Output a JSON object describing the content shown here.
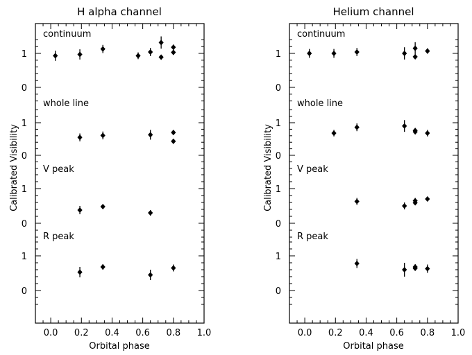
{
  "chart_data": [
    {
      "type": "scatter",
      "title": "H alpha channel",
      "xlabel": "Orbital phase",
      "ylabel": "Calibrated Visibility",
      "xlim": [
        -0.1,
        1.0
      ],
      "xticks": [
        "0.0",
        "0.2",
        "0.4",
        "0.6",
        "0.8",
        "1.0"
      ],
      "panels": [
        {
          "name": "continuum",
          "yticks": [
            "0",
            "1"
          ],
          "points": [
            {
              "x": 0.03,
              "y": 0.93,
              "err": 0.15
            },
            {
              "x": 0.19,
              "y": 0.97,
              "err": 0.15
            },
            {
              "x": 0.34,
              "y": 1.13,
              "err": 0.12
            },
            {
              "x": 0.57,
              "y": 0.93,
              "err": 0.1
            },
            {
              "x": 0.65,
              "y": 1.04,
              "err": 0.12
            },
            {
              "x": 0.72,
              "y": 1.32,
              "err": 0.18
            },
            {
              "x": 0.72,
              "y": 0.89,
              "err": 0.02
            },
            {
              "x": 0.8,
              "y": 1.18,
              "err": 0.08
            },
            {
              "x": 0.8,
              "y": 1.03,
              "err": 0.07
            }
          ]
        },
        {
          "name": "whole line",
          "yticks": [
            "0",
            "1"
          ],
          "points": [
            {
              "x": 0.19,
              "y": 0.55,
              "err": 0.12
            },
            {
              "x": 0.34,
              "y": 0.61,
              "err": 0.12
            },
            {
              "x": 0.65,
              "y": 0.63,
              "err": 0.15
            },
            {
              "x": 0.8,
              "y": 0.7,
              "err": 0.04
            },
            {
              "x": 0.8,
              "y": 0.43,
              "err": 0.03
            }
          ]
        },
        {
          "name": "V peak",
          "yticks": [
            "0",
            "1"
          ],
          "points": [
            {
              "x": 0.19,
              "y": 0.38,
              "err": 0.12
            },
            {
              "x": 0.34,
              "y": 0.48,
              "err": 0.04
            },
            {
              "x": 0.65,
              "y": 0.3,
              "err": 0.08
            }
          ]
        },
        {
          "name": "R peak",
          "yticks": [
            "0",
            "1"
          ],
          "points": [
            {
              "x": 0.19,
              "y": 0.53,
              "err": 0.15
            },
            {
              "x": 0.34,
              "y": 0.68,
              "err": 0.08
            },
            {
              "x": 0.65,
              "y": 0.45,
              "err": 0.15
            },
            {
              "x": 0.8,
              "y": 0.65,
              "err": 0.1
            }
          ]
        }
      ]
    },
    {
      "type": "scatter",
      "title": "Helium channel",
      "xlabel": "Orbital phase",
      "ylabel": "Calibrated Visibility",
      "xlim": [
        -0.1,
        1.0
      ],
      "xticks": [
        "0.0",
        "0.2",
        "0.4",
        "0.6",
        "0.8",
        "1.0"
      ],
      "panels": [
        {
          "name": "continuum",
          "yticks": [
            "0",
            "1"
          ],
          "points": [
            {
              "x": 0.03,
              "y": 1.0,
              "err": 0.13
            },
            {
              "x": 0.19,
              "y": 1.0,
              "err": 0.13
            },
            {
              "x": 0.34,
              "y": 1.04,
              "err": 0.12
            },
            {
              "x": 0.65,
              "y": 1.0,
              "err": 0.18
            },
            {
              "x": 0.72,
              "y": 1.15,
              "err": 0.18
            },
            {
              "x": 0.72,
              "y": 0.9,
              "err": 0.05
            },
            {
              "x": 0.8,
              "y": 1.07,
              "err": 0.08
            }
          ]
        },
        {
          "name": "whole line",
          "yticks": [
            "0",
            "1"
          ],
          "points": [
            {
              "x": 0.19,
              "y": 0.68,
              "err": 0.1
            },
            {
              "x": 0.34,
              "y": 0.86,
              "err": 0.12
            },
            {
              "x": 0.65,
              "y": 0.9,
              "err": 0.18
            },
            {
              "x": 0.72,
              "y": 0.76,
              "err": 0.08
            },
            {
              "x": 0.72,
              "y": 0.72,
              "err": 0.06
            },
            {
              "x": 0.8,
              "y": 0.68,
              "err": 0.1
            }
          ]
        },
        {
          "name": "V peak",
          "yticks": [
            "0",
            "1"
          ],
          "points": [
            {
              "x": 0.34,
              "y": 0.63,
              "err": 0.1
            },
            {
              "x": 0.65,
              "y": 0.5,
              "err": 0.1
            },
            {
              "x": 0.72,
              "y": 0.65,
              "err": 0.08
            },
            {
              "x": 0.72,
              "y": 0.59,
              "err": 0.06
            },
            {
              "x": 0.8,
              "y": 0.7,
              "err": 0.07
            }
          ]
        },
        {
          "name": "R peak",
          "yticks": [
            "0",
            "1"
          ],
          "points": [
            {
              "x": 0.34,
              "y": 0.78,
              "err": 0.13
            },
            {
              "x": 0.65,
              "y": 0.6,
              "err": 0.2
            },
            {
              "x": 0.72,
              "y": 0.68,
              "err": 0.08
            },
            {
              "x": 0.72,
              "y": 0.64,
              "err": 0.05
            },
            {
              "x": 0.8,
              "y": 0.63,
              "err": 0.12
            }
          ]
        }
      ]
    }
  ]
}
